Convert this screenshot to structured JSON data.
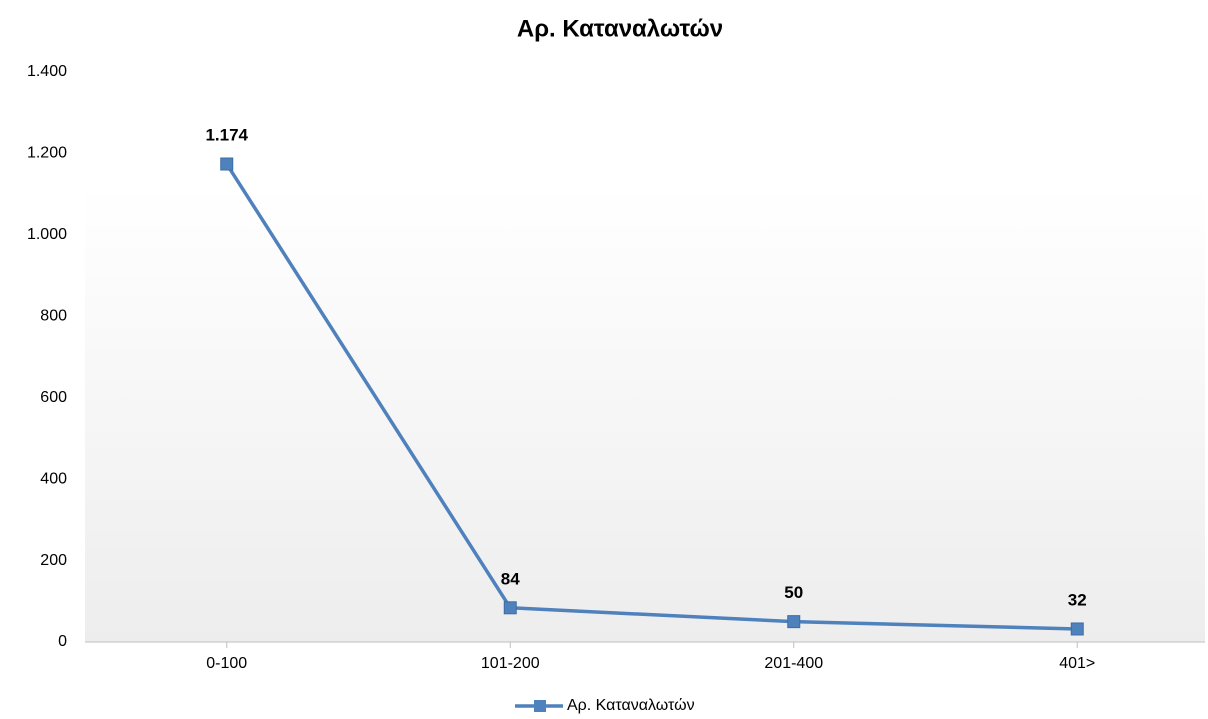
{
  "chart_data": {
    "type": "line",
    "title": "Αρ. Καταναλωτών",
    "categories": [
      "0-100",
      "101-200",
      "201-400",
      "401>"
    ],
    "series": [
      {
        "name": "Αρ. Καταναλωτών",
        "color": "#4f81bd",
        "values": [
          1174,
          84,
          50,
          32
        ],
        "value_labels": [
          "1.174",
          "84",
          "50",
          "32"
        ]
      }
    ],
    "ylim": [
      0,
      1400
    ],
    "yticks": [
      0,
      200,
      400,
      600,
      800,
      {
        "value": 1000,
        "label": "1.000"
      },
      {
        "value": 1200,
        "label": "1.200"
      },
      {
        "value": 1400,
        "label": "1.400"
      }
    ],
    "legend": "bottom"
  }
}
